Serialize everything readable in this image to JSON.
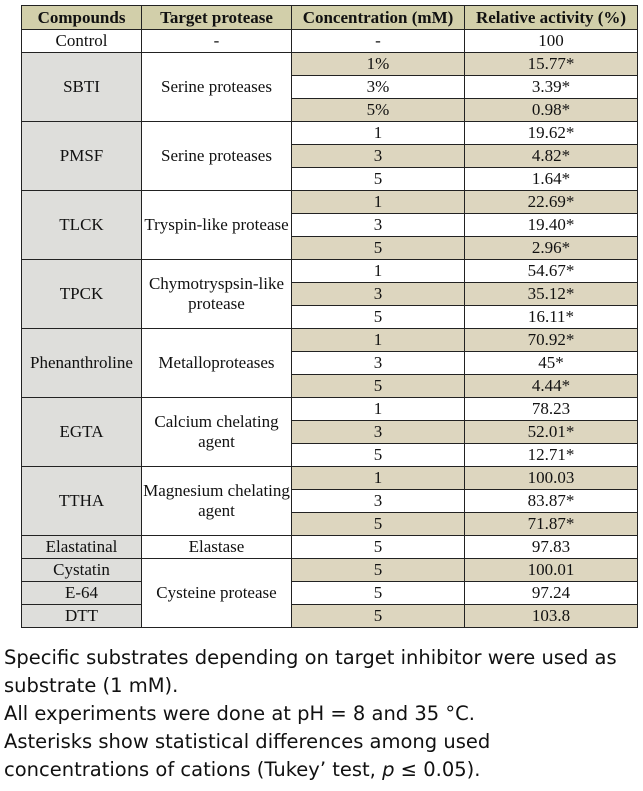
{
  "table": {
    "headers": [
      "Compounds",
      "Target protease",
      "Concentration (mM)",
      "Relative activity (%)"
    ],
    "groups": [
      {
        "compound": "Control",
        "target": "-",
        "rows": [
          {
            "conc": "-",
            "activity": "100"
          }
        ]
      },
      {
        "compound": "SBTI",
        "target": "Serine proteases",
        "rows": [
          {
            "conc": "1%",
            "activity": "15.77*"
          },
          {
            "conc": "3%",
            "activity": "3.39*"
          },
          {
            "conc": "5%",
            "activity": "0.98*"
          }
        ]
      },
      {
        "compound": "PMSF",
        "target": "Serine proteases",
        "rows": [
          {
            "conc": "1",
            "activity": "19.62*"
          },
          {
            "conc": "3",
            "activity": "4.82*"
          },
          {
            "conc": "5",
            "activity": "1.64*"
          }
        ]
      },
      {
        "compound": "TLCK",
        "target": "Tryspin-like protease",
        "rows": [
          {
            "conc": "1",
            "activity": "22.69*"
          },
          {
            "conc": "3",
            "activity": "19.40*"
          },
          {
            "conc": "5",
            "activity": "2.96*"
          }
        ]
      },
      {
        "compound": "TPCK",
        "target": "Chymotryspsin-like protease",
        "rows": [
          {
            "conc": "1",
            "activity": "54.67*"
          },
          {
            "conc": "3",
            "activity": "35.12*"
          },
          {
            "conc": "5",
            "activity": "16.11*"
          }
        ]
      },
      {
        "compound": "Phenanthroline",
        "target": "Metalloproteases",
        "rows": [
          {
            "conc": "1",
            "activity": "70.92*"
          },
          {
            "conc": "3",
            "activity": "45*"
          },
          {
            "conc": "5",
            "activity": "4.44*"
          }
        ]
      },
      {
        "compound": "EGTA",
        "target": "Calcium chelating agent",
        "rows": [
          {
            "conc": "1",
            "activity": "78.23"
          },
          {
            "conc": "3",
            "activity": "52.01*"
          },
          {
            "conc": "5",
            "activity": "12.71*"
          }
        ]
      },
      {
        "compound": "TTHA",
        "target": "Magnesium chelating agent",
        "rows": [
          {
            "conc": "1",
            "activity": "100.03"
          },
          {
            "conc": "3",
            "activity": "83.87*"
          },
          {
            "conc": "5",
            "activity": "71.87*"
          }
        ]
      },
      {
        "compound": "Elastatinal",
        "target": "Elastase",
        "rows": [
          {
            "conc": "5",
            "activity": "97.83"
          }
        ]
      },
      {
        "compound": "Cystatin",
        "target": "Cysteine protease",
        "rows": [
          {
            "conc": "5",
            "activity": "100.01"
          }
        ]
      },
      {
        "compound": "E-64",
        "target": "",
        "rows": [
          {
            "conc": "5",
            "activity": "97.24"
          }
        ]
      },
      {
        "compound": "DTT",
        "target": "",
        "rows": [
          {
            "conc": "5",
            "activity": "103.8"
          }
        ]
      }
    ]
  },
  "notes": {
    "line1": "Specific substrates depending on target inhibitor were used as",
    "line2": "substrate (1 mM).",
    "line3": "All experiments were done at pH = 8 and 35 °C.",
    "line4": "Asterisks show statistical differences among used",
    "line5_before": "concentrations of cations (Tukey’ test, ",
    "line5_var": "p",
    "line5_after": " ≤ 0.05)."
  },
  "colors": {
    "header_bg": "#d2cfaa",
    "compound_bg": "#dededb",
    "shaded_row_bg": "#ddd6bf",
    "plain_bg": "#ffffff"
  }
}
